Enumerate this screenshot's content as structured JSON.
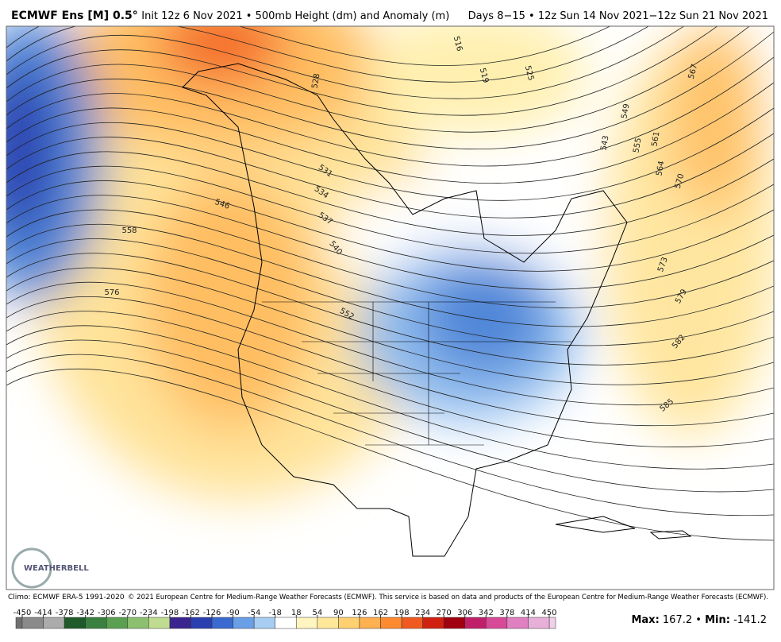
{
  "header": {
    "title_bold": "ECMWF Ens [M] 0.5°",
    "title_rest": "Init 12z 6 Nov 2021 • 500mb Height (dm) and Anomaly (m)",
    "valid": "Days 8−15 • 12z Sun 14 Nov 2021−12z Sun 21 Nov 2021"
  },
  "contour_labels": [
    "516",
    "519",
    "525",
    "528",
    "531",
    "534",
    "537",
    "540",
    "543",
    "546",
    "549",
    "552",
    "555",
    "558",
    "561",
    "564",
    "567",
    "570",
    "573",
    "576",
    "579",
    "582",
    "585"
  ],
  "logo": "WEATHERBELL",
  "footer": {
    "climo": "Climo: ECMWF ERA-5 1991-2020",
    "copyright": "© 2021 European Centre for Medium-Range Weather Forecasts (ECMWF). This service is based on data and products of the European Centre for Medium-Range Weather Forecasts (ECMWF)."
  },
  "colorbar": {
    "ticks": [
      -450,
      -414,
      -378,
      -342,
      -306,
      -270,
      -234,
      -198,
      -162,
      -126,
      -90,
      -54,
      -18,
      18,
      54,
      90,
      126,
      162,
      198,
      234,
      270,
      306,
      342,
      378,
      414,
      450
    ],
    "colors": [
      "#8a8a8a",
      "#ababab",
      "#1e5a2a",
      "#3a8040",
      "#5aa050",
      "#8cc070",
      "#c0dc90",
      "#3a2590",
      "#2a40b0",
      "#3a6ad0",
      "#6a9ee6",
      "#a8cdf2",
      "#ffffff",
      "#fff5c0",
      "#ffe89a",
      "#ffd070",
      "#ffb050",
      "#ff8a30",
      "#f05a20",
      "#d02010",
      "#a00010",
      "#c0206a",
      "#d84a98",
      "#e080c0",
      "#e8b0d8"
    ]
  },
  "stats": {
    "max_label": "Max:",
    "max": 167.2,
    "separator": "•",
    "min_label": "Min:",
    "min": -141.2
  }
}
